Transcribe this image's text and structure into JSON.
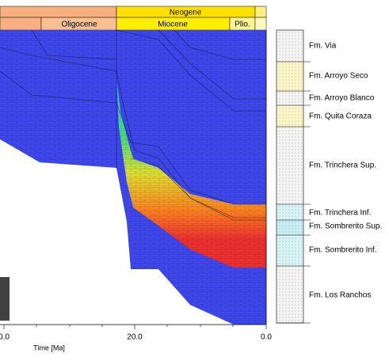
{
  "header": {
    "periods": [
      "Neogene"
    ],
    "epochs": [
      "Oligocene",
      "Miocene",
      "Plio."
    ]
  },
  "axis": {
    "ticks": [
      "0.0",
      "20.0",
      "0.0"
    ],
    "label": "Time [Ma]"
  },
  "legend": {
    "formations": [
      "Fm. Via",
      "Fm. Arroyo Seco",
      "Fm. Arroyo Blanco",
      "Fm. Quita Coraza",
      "Fm. Trinchera Sup.",
      "Fm. Trinchera Inf.",
      "Fm. Sombrerito Sup.",
      "Fm. Sombrerito Inf.",
      "Fm. Los Ranchos"
    ]
  }
}
